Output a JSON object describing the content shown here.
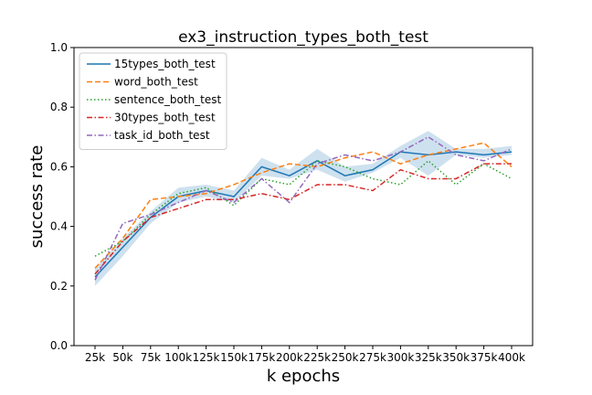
{
  "chart_data": {
    "type": "line",
    "title": "ex3_instruction_types_both_test",
    "xlabel": "k epochs",
    "ylabel": "success rate",
    "ylim": [
      0.0,
      1.0
    ],
    "y_ticks": [
      "0.0",
      "0.2",
      "0.4",
      "0.6",
      "0.8",
      "1.0"
    ],
    "categories": [
      "25k",
      "50k",
      "75k",
      "100k",
      "125k",
      "150k",
      "175k",
      "200k",
      "225k",
      "250k",
      "275k",
      "300k",
      "325k",
      "350k",
      "375k",
      "400k"
    ],
    "grid": false,
    "legend_position": "top-left",
    "series": [
      {
        "name": "15types_both_test",
        "color": "#1f77b4",
        "style": "solid",
        "values": [
          0.23,
          0.33,
          0.43,
          0.5,
          0.52,
          0.5,
          0.6,
          0.57,
          0.62,
          0.57,
          0.59,
          0.65,
          0.64,
          0.65,
          0.64,
          0.65
        ],
        "band_lower": [
          0.2,
          0.3,
          0.41,
          0.48,
          0.5,
          0.48,
          0.57,
          0.56,
          0.59,
          0.55,
          0.58,
          0.63,
          0.57,
          0.64,
          0.63,
          0.64
        ],
        "band_upper": [
          0.26,
          0.36,
          0.45,
          0.53,
          0.54,
          0.52,
          0.63,
          0.59,
          0.66,
          0.6,
          0.61,
          0.67,
          0.72,
          0.66,
          0.66,
          0.67
        ]
      },
      {
        "name": "word_both_test",
        "color": "#ff7f0e",
        "style": "dashed",
        "values": [
          0.26,
          0.36,
          0.49,
          0.5,
          0.51,
          0.54,
          0.58,
          0.61,
          0.6,
          0.63,
          0.65,
          0.61,
          0.64,
          0.66,
          0.68,
          0.6
        ]
      },
      {
        "name": "sentence_both_test",
        "color": "#2ca02c",
        "style": "dotted",
        "values": [
          0.3,
          0.35,
          0.44,
          0.51,
          0.53,
          0.47,
          0.56,
          0.54,
          0.62,
          0.6,
          0.56,
          0.54,
          0.62,
          0.54,
          0.61,
          0.56
        ]
      },
      {
        "name": "30types_both_test",
        "color": "#d62728",
        "style": "dashdot",
        "values": [
          0.24,
          0.35,
          0.43,
          0.46,
          0.49,
          0.49,
          0.51,
          0.49,
          0.54,
          0.54,
          0.52,
          0.59,
          0.56,
          0.56,
          0.61,
          0.61
        ]
      },
      {
        "name": "task_id_both_test",
        "color": "#9467bd",
        "style": "dashdot",
        "values": [
          0.22,
          0.41,
          0.44,
          0.48,
          0.52,
          0.48,
          0.56,
          0.48,
          0.61,
          0.64,
          0.62,
          0.65,
          0.7,
          0.64,
          0.62,
          0.66
        ]
      }
    ]
  }
}
